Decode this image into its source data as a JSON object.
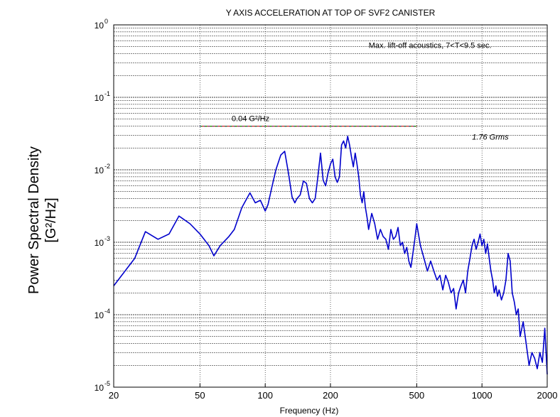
{
  "chart_data": {
    "type": "line",
    "title": "Y AXIS ACCELERATION AT TOP OF SVF2 CANISTER",
    "xlabel": "Frequency (Hz)",
    "ylabel_line1": "Power Spectral Density",
    "ylabel_line2": "[G²/Hz]",
    "xscale": "log",
    "yscale": "log",
    "xlim": [
      20,
      2000
    ],
    "ylim": [
      1e-05,
      1
    ],
    "grid": true,
    "xticks": [
      {
        "value": 20,
        "label": "20"
      },
      {
        "value": 50,
        "label": "50"
      },
      {
        "value": 100,
        "label": "100"
      },
      {
        "value": 200,
        "label": "200"
      },
      {
        "value": 500,
        "label": "500"
      },
      {
        "value": 1000,
        "label": "1000"
      },
      {
        "value": 2000,
        "label": "2000"
      }
    ],
    "yticks": [
      {
        "value": 1e-05,
        "mantissa": "10",
        "exp": "-5"
      },
      {
        "value": 0.0001,
        "mantissa": "10",
        "exp": "-4"
      },
      {
        "value": 0.001,
        "mantissa": "10",
        "exp": "-3"
      },
      {
        "value": 0.01,
        "mantissa": "10",
        "exp": "-2"
      },
      {
        "value": 0.1,
        "mantissa": "10",
        "exp": "-1"
      },
      {
        "value": 1,
        "mantissa": "10",
        "exp": "0"
      }
    ],
    "annotations": [
      {
        "text": "Max. lift-off acoustics, 7<T<9.5 sec.",
        "x": 300,
        "y": 0.48,
        "italic": false
      },
      {
        "text": "0.04 G²/Hz",
        "x": 70,
        "y": 0.047,
        "italic": false
      },
      {
        "text": "1.76 Grms",
        "x": 900,
        "y": 0.026,
        "italic": true
      }
    ],
    "series": [
      {
        "type": "step",
        "color": "#cc2222",
        "x": [
          50,
          500
        ],
        "y": [
          0.04,
          0.04
        ]
      },
      {
        "type": "response",
        "color": "#0000cc",
        "x": [
          20,
          25,
          28,
          32,
          36,
          40,
          45,
          50,
          55,
          58,
          62,
          68,
          72,
          78,
          85,
          90,
          95,
          100,
          103,
          107,
          112,
          118,
          123,
          128,
          133,
          137,
          140,
          145,
          150,
          155,
          160,
          165,
          170,
          175,
          180,
          185,
          190,
          195,
          200,
          205,
          210,
          215,
          220,
          225,
          230,
          235,
          240,
          245,
          250,
          255,
          260,
          265,
          270,
          275,
          280,
          285,
          290,
          295,
          300,
          310,
          320,
          330,
          340,
          350,
          360,
          370,
          380,
          390,
          400,
          410,
          420,
          430,
          440,
          450,
          460,
          470,
          480,
          490,
          500,
          520,
          540,
          560,
          580,
          600,
          620,
          640,
          660,
          680,
          700,
          720,
          740,
          760,
          780,
          800,
          820,
          840,
          860,
          880,
          900,
          920,
          940,
          960,
          980,
          1000,
          1020,
          1040,
          1060,
          1080,
          1100,
          1120,
          1140,
          1160,
          1180,
          1200,
          1230,
          1260,
          1290,
          1320,
          1350,
          1380,
          1410,
          1440,
          1470,
          1500,
          1550,
          1600,
          1650,
          1700,
          1750,
          1800,
          1850,
          1900,
          1950,
          2000
        ],
        "y": [
          0.00025,
          0.0006,
          0.0014,
          0.0011,
          0.0013,
          0.0023,
          0.0018,
          0.0013,
          0.0009,
          0.00065,
          0.0009,
          0.0012,
          0.0015,
          0.003,
          0.0048,
          0.0035,
          0.0038,
          0.0027,
          0.0033,
          0.0055,
          0.01,
          0.016,
          0.018,
          0.009,
          0.0042,
          0.0035,
          0.004,
          0.0045,
          0.007,
          0.0065,
          0.004,
          0.0035,
          0.004,
          0.008,
          0.017,
          0.0072,
          0.006,
          0.009,
          0.012,
          0.014,
          0.008,
          0.0067,
          0.008,
          0.022,
          0.025,
          0.02,
          0.029,
          0.022,
          0.015,
          0.011,
          0.017,
          0.012,
          0.008,
          0.0045,
          0.0035,
          0.005,
          0.003,
          0.0022,
          0.0015,
          0.0025,
          0.0018,
          0.0011,
          0.0015,
          0.0012,
          0.0011,
          0.0008,
          0.0015,
          0.0011,
          0.0012,
          0.0016,
          0.0009,
          0.001,
          0.0007,
          0.00085,
          0.00055,
          0.00045,
          0.0007,
          0.0011,
          0.0018,
          0.0009,
          0.0006,
          0.0004,
          0.00055,
          0.0004,
          0.0003,
          0.00035,
          0.00022,
          0.00035,
          0.00028,
          0.0002,
          0.00023,
          0.00012,
          0.0002,
          0.00025,
          0.0003,
          0.0002,
          0.0004,
          0.0006,
          0.0009,
          0.0011,
          0.0008,
          0.001,
          0.0013,
          0.0009,
          0.0011,
          0.0007,
          0.00095,
          0.0006,
          0.0004,
          0.0003,
          0.0002,
          0.00025,
          0.00018,
          0.00022,
          0.00016,
          0.0002,
          0.0003,
          0.0007,
          0.00055,
          0.0002,
          0.00015,
          0.0001,
          0.00012,
          5e-05,
          8e-05,
          4e-05,
          2e-05,
          3e-05,
          2.5e-05,
          1.8e-05,
          3e-05,
          2.2e-05,
          6.5e-05,
          1.5e-05
        ]
      }
    ]
  }
}
